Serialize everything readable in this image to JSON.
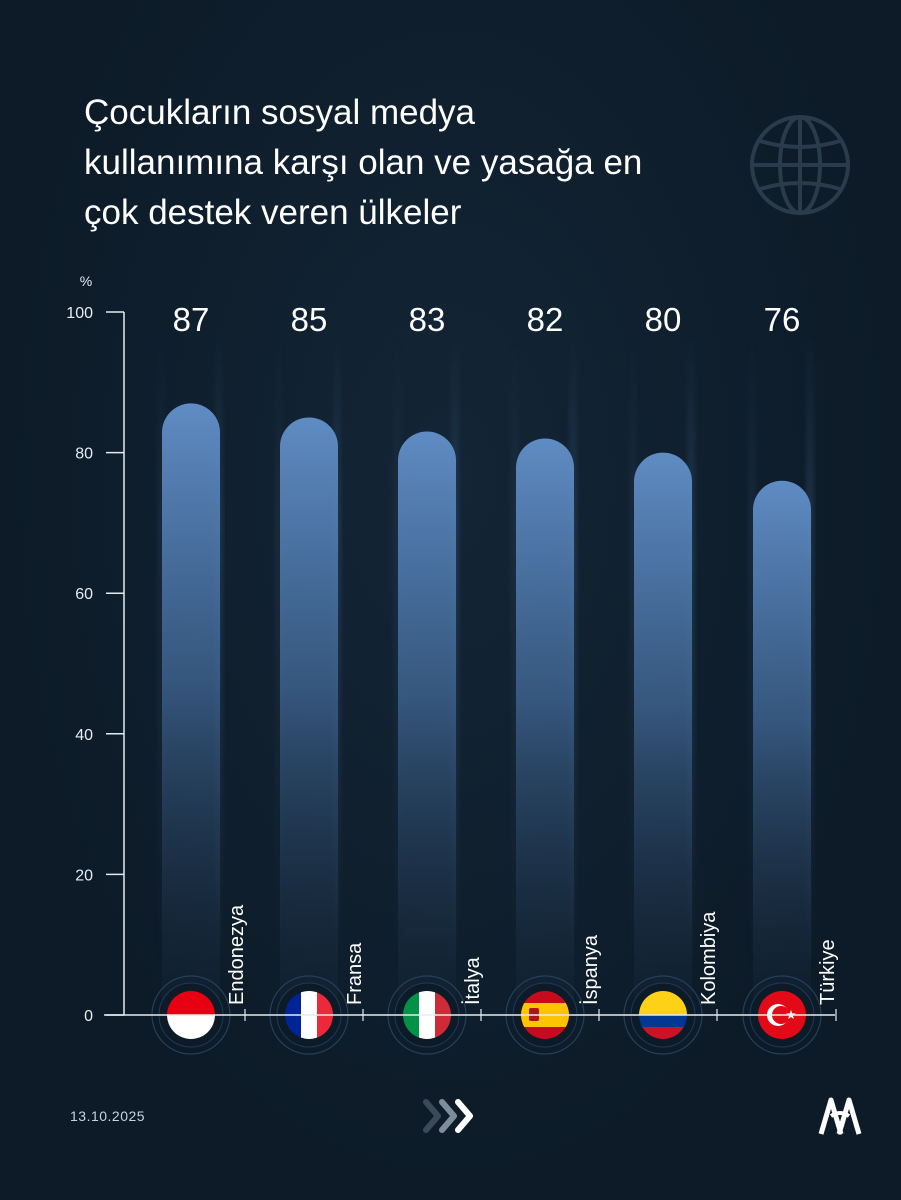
{
  "header": {
    "title_lines": [
      "Çocukların sosyal medya",
      "kullanımına karşı olan ve yasağa en",
      "çok destek veren ülkeler"
    ],
    "globe_icon": "globe-icon"
  },
  "chart_data": {
    "type": "bar",
    "title": "Çocukların sosyal medya kullanımına karşı olan ve yasağa en çok destek veren ülkeler",
    "ylabel": "%",
    "ylim": [
      0,
      100
    ],
    "yticks": [
      "0",
      "20",
      "40",
      "60",
      "80",
      "100"
    ],
    "categories": [
      "Endonezya",
      "Fransa",
      "İtalya",
      "İspanya",
      "Kolombiya",
      "Türkiye"
    ],
    "values": [
      87,
      85,
      83,
      82,
      80,
      76
    ],
    "value_labels": [
      "87",
      "85",
      "83",
      "82",
      "80",
      "76"
    ],
    "flags": [
      "indonesia-flag-icon",
      "france-flag-icon",
      "italy-flag-icon",
      "spain-flag-icon",
      "colombia-flag-icon",
      "turkey-flag-icon"
    ],
    "bar_color": "#5b86bd",
    "grid": false
  },
  "footer": {
    "date": "13.10.2025",
    "arrows_icon": "chevrons-right-icon",
    "logo_icon": "aa-logo-icon"
  },
  "colors": {
    "background": "#0d1b28",
    "bar_top": "#5b86bd",
    "axis": "#e6ebf0"
  }
}
